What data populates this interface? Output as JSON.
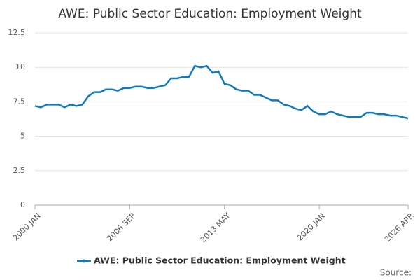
{
  "chart_data": {
    "type": "line",
    "title": "AWE: Public Sector Education: Employment Weight",
    "categories": [
      "2000 JAN",
      null,
      null,
      null,
      null,
      null,
      null,
      null,
      null,
      null,
      null,
      null,
      null,
      null,
      null,
      null,
      "2006 SEP",
      null,
      null,
      null,
      null,
      null,
      null,
      null,
      null,
      null,
      null,
      null,
      null,
      null,
      null,
      null,
      "2013 MAY",
      null,
      null,
      null,
      null,
      null,
      null,
      null,
      null,
      null,
      null,
      null,
      null,
      null,
      null,
      null,
      "2020 JAN",
      null,
      null,
      null,
      null,
      null,
      null,
      null,
      null,
      null,
      null,
      null,
      null,
      null,
      null,
      "2026 APR"
    ],
    "series": [
      {
        "name": "AWE: Public Sector Education: Employment Weight",
        "color": "#0f7bbd",
        "values": [
          7.2,
          7.1,
          7.3,
          7.3,
          7.3,
          7.1,
          7.3,
          7.2,
          7.3,
          7.9,
          8.2,
          8.2,
          8.4,
          8.4,
          8.3,
          8.5,
          8.5,
          8.6,
          8.6,
          8.5,
          8.5,
          8.6,
          8.7,
          9.2,
          9.2,
          9.3,
          9.3,
          10.1,
          10.0,
          10.1,
          9.6,
          9.7,
          8.8,
          8.7,
          8.4,
          8.3,
          8.3,
          8.0,
          8.0,
          7.8,
          7.6,
          7.6,
          7.3,
          7.2,
          7.0,
          6.9,
          7.2,
          6.8,
          6.6,
          6.6,
          6.8,
          6.6,
          6.5,
          6.4,
          6.4,
          6.4,
          6.7,
          6.7,
          6.6,
          6.6,
          6.5,
          6.5,
          6.4,
          6.3
        ]
      }
    ],
    "ylim": [
      0,
      12.5
    ],
    "yticks": [
      0,
      2.5,
      5,
      7.5,
      10,
      12.5
    ],
    "grid": true,
    "source": "Source:"
  }
}
